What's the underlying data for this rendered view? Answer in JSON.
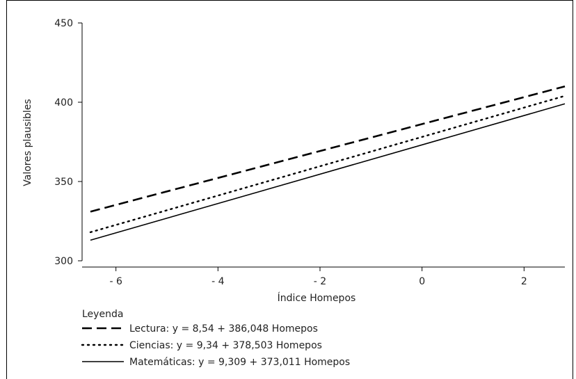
{
  "chart_data": {
    "type": "line",
    "xlabel": "Índice Homepos",
    "ylabel": "Valores plausibles",
    "xlim": [
      -6.5,
      2.8
    ],
    "ylim": [
      300,
      450
    ],
    "x_ticks": [
      -6,
      -4,
      -2,
      0,
      2
    ],
    "x_tick_labels": [
      "- 6",
      "- 4",
      "- 2",
      "0",
      "2"
    ],
    "y_ticks": [
      300,
      350,
      400,
      450
    ],
    "y_tick_labels": [
      "300",
      "350",
      "400",
      "450"
    ],
    "legend_title": "Leyenda",
    "legend_position": "bottom-left",
    "grid": false,
    "series": [
      {
        "name": "Lectura: y = 8,54 + 386,048 Homepos",
        "style": "dashed",
        "x": [
          -6.5,
          2.8
        ],
        "y": [
          331,
          410
        ]
      },
      {
        "name": "Ciencias: y = 9,34 + 378,503 Homepos",
        "style": "dotted",
        "x": [
          -6.5,
          2.8
        ],
        "y": [
          318,
          404
        ]
      },
      {
        "name": "Matemáticas: y = 9,309 + 373,011 Homepos",
        "style": "solid",
        "x": [
          -6.5,
          2.8
        ],
        "y": [
          313,
          399
        ]
      }
    ]
  }
}
